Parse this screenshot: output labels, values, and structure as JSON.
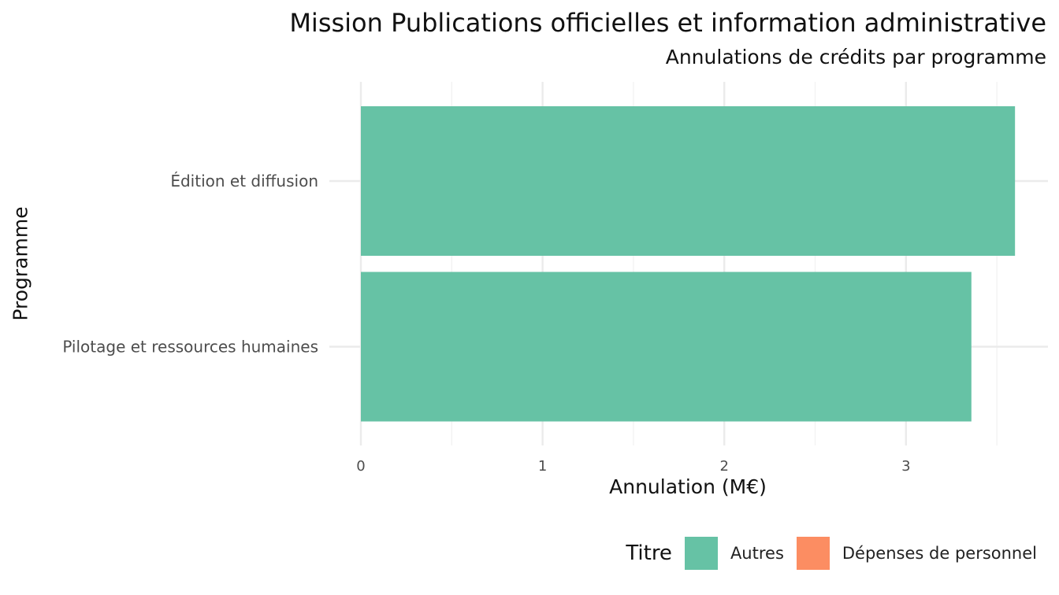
{
  "title": "Mission Publications officielles et information administrative",
  "subtitle": "Annulations de crédits par programme",
  "chart_data": {
    "type": "bar",
    "orientation": "horizontal",
    "categories": [
      "Édition et diffusion",
      "Pilotage et ressources humaines"
    ],
    "series": [
      {
        "name": "Autres",
        "color": "#66c2a5",
        "values": [
          3.6,
          3.36
        ]
      },
      {
        "name": "Dépenses de personnel",
        "color": "#fc8d62",
        "values": [
          0,
          0
        ]
      }
    ],
    "xlabel": "Annulation (M€)",
    "ylabel": "Programme",
    "xlim": [
      0,
      3.72
    ],
    "x_ticks": [
      0,
      1,
      2,
      3
    ],
    "grid": true,
    "legend": {
      "title": "Titre",
      "position": "bottom-right",
      "entries": [
        {
          "label": "Autres",
          "color": "#66c2a5"
        },
        {
          "label": "Dépenses de personnel",
          "color": "#fc8d62"
        }
      ]
    }
  }
}
